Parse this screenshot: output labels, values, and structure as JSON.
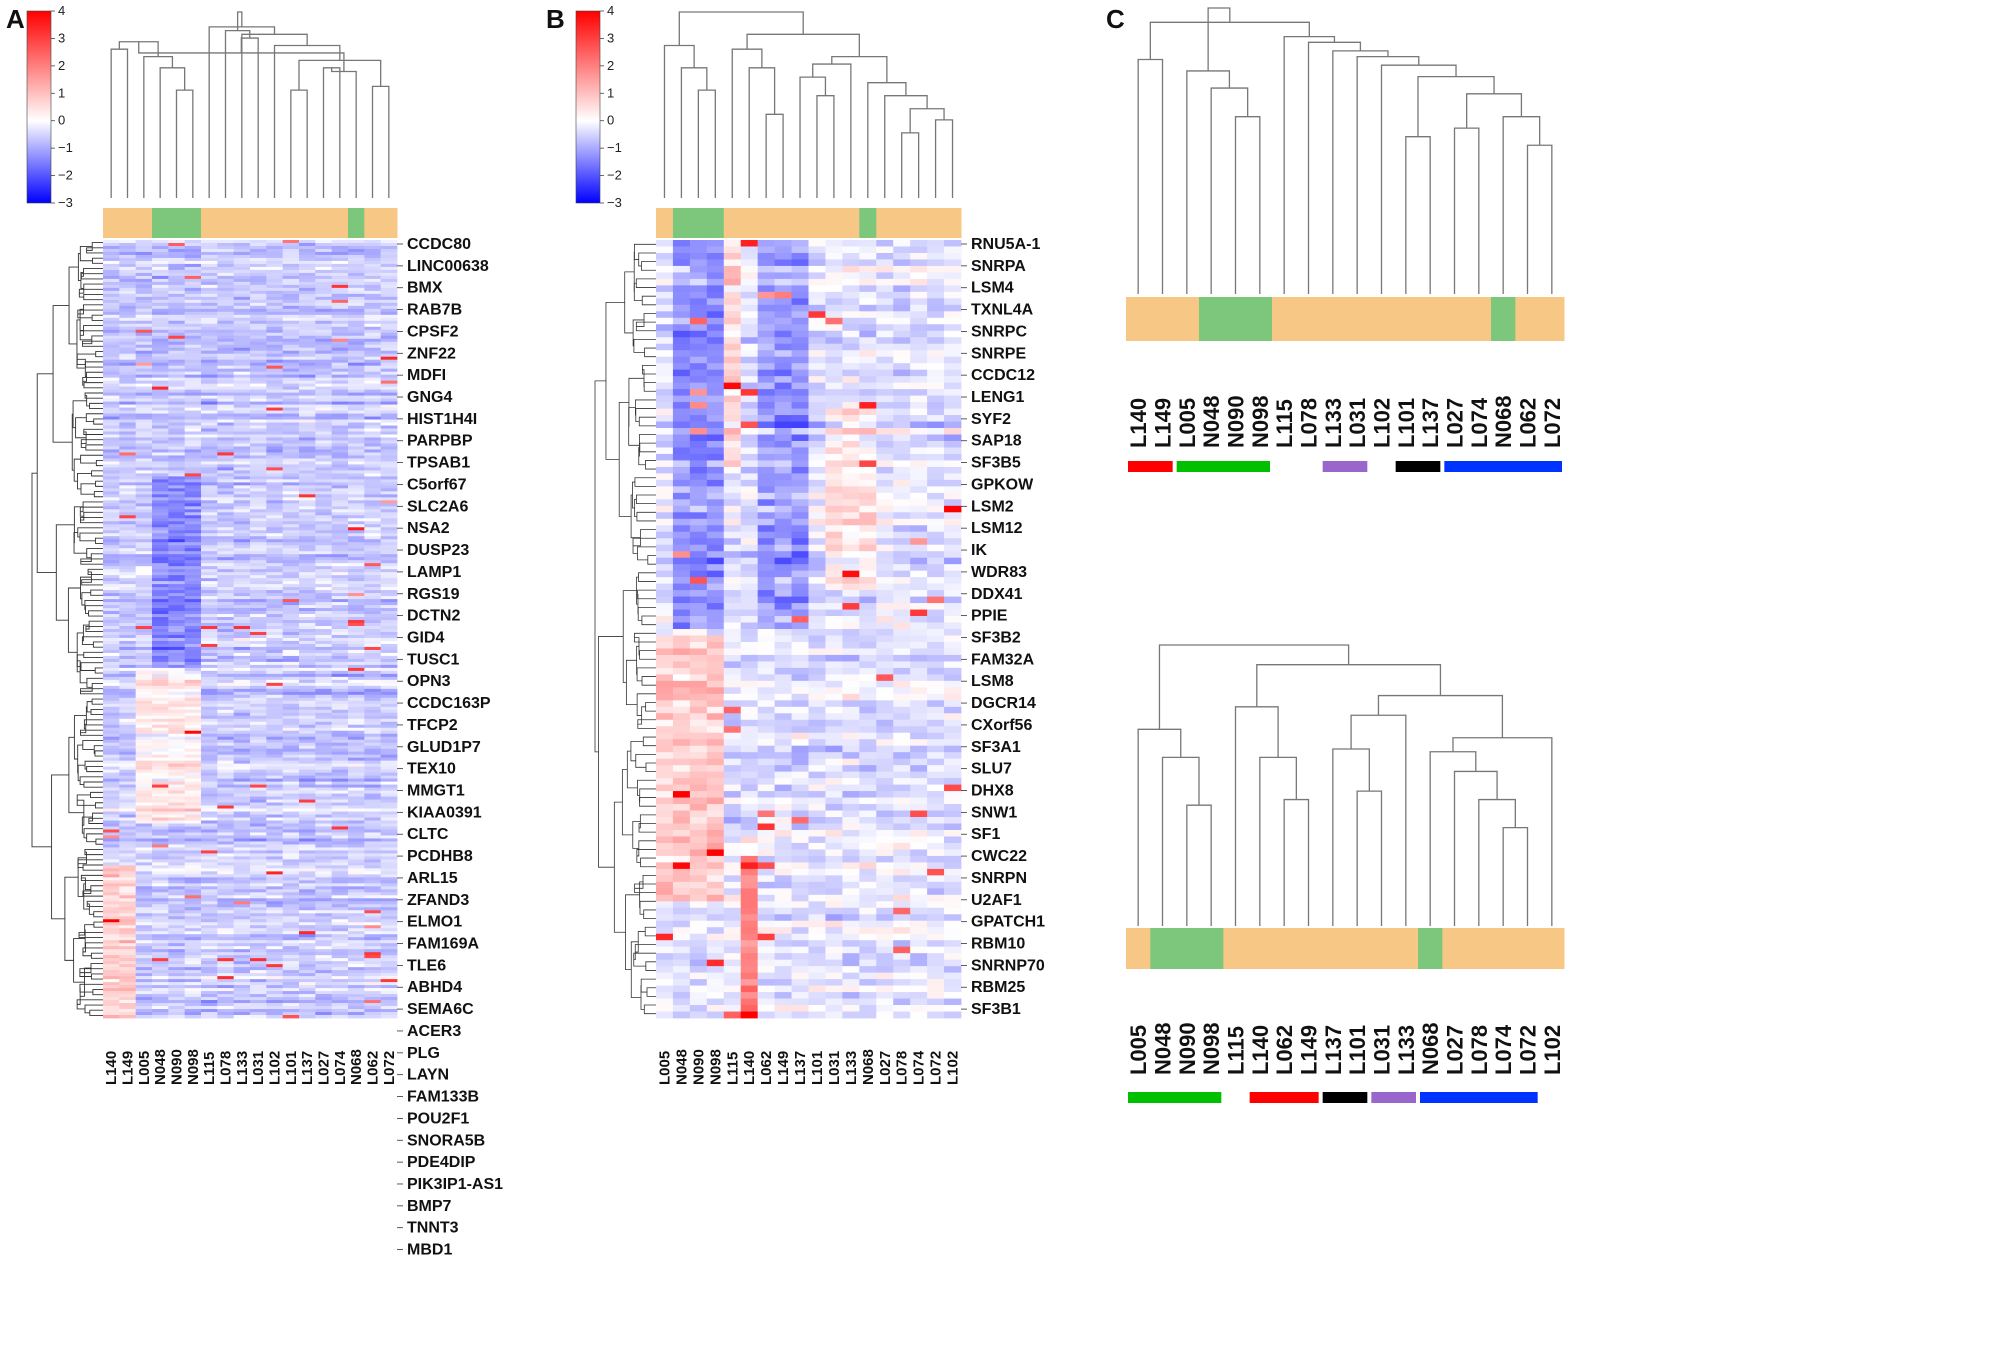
{
  "chart_data": [
    {
      "panel": "A",
      "type": "heatmap",
      "colorbar": {
        "min": -3,
        "max": 4,
        "ticks": [
          "4",
          "3",
          "2",
          "1",
          "0",
          "−1",
          "−2",
          "−3"
        ],
        "low_color": "#0000ff",
        "mid_color": "#ffffff",
        "high_color": "#ff0000"
      },
      "samples": [
        "L140",
        "L149",
        "L005",
        "N048",
        "N090",
        "N098",
        "L115",
        "L078",
        "L133",
        "L031",
        "L102",
        "L101",
        "L137",
        "L027",
        "L074",
        "N068",
        "L062",
        "L072"
      ],
      "groups": [
        "tumor",
        "tumor",
        "tumor",
        "normal",
        "normal",
        "normal",
        "tumor",
        "tumor",
        "tumor",
        "tumor",
        "tumor",
        "tumor",
        "tumor",
        "tumor",
        "tumor",
        "normal",
        "tumor",
        "tumor"
      ],
      "genes": [
        "CCDC80",
        "LINC00638",
        "BMX",
        "RAB7B",
        "CPSF2",
        "ZNF22",
        "MDFI",
        "GNG4",
        "HIST1H4I",
        "PARPBP",
        "TPSAB1",
        "C5orf67",
        "SLC2A6",
        "NSA2",
        "DUSP23",
        "LAMP1",
        "RGS19",
        "DCTN2",
        "GID4",
        "TUSC1",
        "OPN3",
        "CCDC163P",
        "TFCP2",
        "GLUD1P7",
        "TEX10",
        "MMGT1",
        "KIAA0391",
        "CLTC",
        "PCDHB8",
        "ARL15",
        "ZFAND3",
        "ELMO1",
        "FAM169A",
        "TLE6",
        "ABHD4",
        "SEMA6C",
        "ACER3",
        "PLG",
        "LAYN",
        "FAM133B",
        "POU2F1",
        "SNORA5B",
        "PDE4DIP",
        "PIK3IP1-AS1",
        "BMP7",
        "TNNT3",
        "MBD1"
      ]
    },
    {
      "panel": "B",
      "type": "heatmap",
      "colorbar": {
        "min": -3,
        "max": 4,
        "ticks": [
          "4",
          "3",
          "2",
          "1",
          "0",
          "−1",
          "−2",
          "−3"
        ],
        "low_color": "#0000ff",
        "mid_color": "#ffffff",
        "high_color": "#ff0000"
      },
      "samples": [
        "L005",
        "N048",
        "N090",
        "N098",
        "L115",
        "L140",
        "L062",
        "L149",
        "L137",
        "L101",
        "L031",
        "L133",
        "N068",
        "L027",
        "L078",
        "L074",
        "L072",
        "L102"
      ],
      "groups": [
        "tumor",
        "normal",
        "normal",
        "normal",
        "tumor",
        "tumor",
        "tumor",
        "tumor",
        "tumor",
        "tumor",
        "tumor",
        "tumor",
        "normal",
        "tumor",
        "tumor",
        "tumor",
        "tumor",
        "tumor"
      ],
      "genes": [
        "RNU5A-1",
        "SNRPA",
        "LSM4",
        "TXNL4A",
        "SNRPC",
        "SNRPE",
        "CCDC12",
        "LENG1",
        "SYF2",
        "SAP18",
        "SF3B5",
        "GPKOW",
        "LSM2",
        "LSM12",
        "IK",
        "WDR83",
        "DDX41",
        "PPIE",
        "SF3B2",
        "FAM32A",
        "LSM8",
        "DGCR14",
        "CXorf56",
        "SF3A1",
        "SLU7",
        "DHX8",
        "SNW1",
        "SF1",
        "CWC22",
        "SNRPN",
        "U2AF1",
        "GPATCH1",
        "RBM10",
        "SNRNP70",
        "RBM25",
        "SF3B1"
      ]
    },
    {
      "panel": "C",
      "type": "dendrogram",
      "subplots": [
        {
          "samples": [
            "L140",
            "L149",
            "L005",
            "N048",
            "N090",
            "N098",
            "L115",
            "L078",
            "L133",
            "L031",
            "L102",
            "L101",
            "L137",
            "L027",
            "L074",
            "N068",
            "L062",
            "L072"
          ],
          "groups": [
            "tumor",
            "tumor",
            "tumor",
            "normal",
            "normal",
            "normal",
            "tumor",
            "tumor",
            "tumor",
            "tumor",
            "tumor",
            "tumor",
            "tumor",
            "tumor",
            "tumor",
            "normal",
            "tumor",
            "tumor"
          ],
          "cluster_bars": [
            {
              "color": "#ff0000",
              "from": 0,
              "to": 1
            },
            {
              "color": "#00c000",
              "from": 2,
              "to": 5
            },
            {
              "color": "#9966cc",
              "from": 8,
              "to": 9
            },
            {
              "color": "#000000",
              "from": 11,
              "to": 12
            },
            {
              "color": "#0033ff",
              "from": 13,
              "to": 17
            }
          ]
        },
        {
          "samples": [
            "L005",
            "N048",
            "N090",
            "N098",
            "L115",
            "L140",
            "L062",
            "L149",
            "L137",
            "L101",
            "L031",
            "L133",
            "N068",
            "L027",
            "L078",
            "L074",
            "L072",
            "L102"
          ],
          "groups": [
            "tumor",
            "normal",
            "normal",
            "normal",
            "tumor",
            "tumor",
            "tumor",
            "tumor",
            "tumor",
            "tumor",
            "tumor",
            "tumor",
            "normal",
            "tumor",
            "tumor",
            "tumor",
            "tumor",
            "tumor"
          ],
          "cluster_bars": [
            {
              "color": "#00c000",
              "from": 0,
              "to": 3
            },
            {
              "color": "#ff0000",
              "from": 5,
              "to": 7
            },
            {
              "color": "#000000",
              "from": 8,
              "to": 9
            },
            {
              "color": "#9966cc",
              "from": 10,
              "to": 11
            },
            {
              "color": "#0033ff",
              "from": 12,
              "to": 16
            }
          ]
        }
      ]
    }
  ],
  "panel_labels": {
    "a": "A",
    "b": "B",
    "c": "C"
  },
  "colors": {
    "tumor": "#f7c785",
    "normal": "#7cc77c",
    "line": "#777777",
    "rowtree": "#333333"
  }
}
